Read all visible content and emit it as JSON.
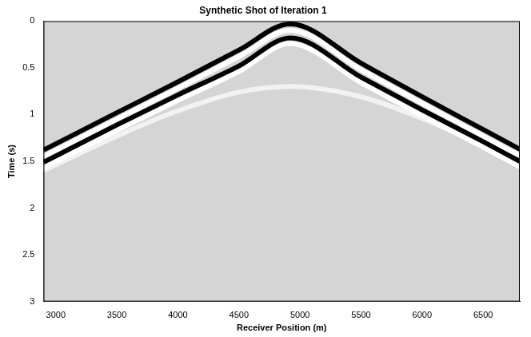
{
  "chart_data": {
    "type": "line",
    "title": "Synthetic Shot of Iteration 1",
    "x_label": "Receiver Position (m)",
    "y_label": "Time (s)",
    "x": [
      2900,
      3500,
      4000,
      4500,
      4920,
      5500,
      6000,
      6500,
      6800
    ],
    "series": [
      {
        "color": "#000000",
        "line_style": "solid",
        "values": [
          1.38,
          0.98,
          0.65,
          0.31,
          0.03,
          0.45,
          0.81,
          1.16,
          1.37
        ]
      },
      {
        "color": "#ffffff",
        "line_style": "solid",
        "values": [
          1.45,
          1.05,
          0.72,
          0.38,
          0.1,
          0.52,
          0.88,
          1.23,
          1.44
        ]
      },
      {
        "color": "#000000",
        "line_style": "solid",
        "values": [
          1.51,
          1.11,
          0.79,
          0.48,
          0.18,
          0.6,
          0.95,
          1.29,
          1.5
        ]
      },
      {
        "color": "#ffffff",
        "line_style": "solid",
        "values": [
          1.57,
          1.17,
          0.85,
          0.54,
          0.24,
          0.66,
          1.01,
          1.35,
          1.56
        ]
      },
      {
        "color": "#f2f2f2",
        "line_style": "solid",
        "values": [
          1.6,
          1.23,
          0.96,
          0.76,
          0.7,
          0.81,
          1.04,
          1.33,
          1.51
        ]
      }
    ],
    "xlim": [
      2900,
      6800
    ],
    "xticks": [
      3000,
      3500,
      4000,
      4500,
      5000,
      5500,
      6000,
      6500
    ],
    "ylim": [
      0,
      3
    ],
    "yticks": [
      0,
      0.5,
      1,
      1.5,
      2,
      2.5,
      3
    ],
    "grid": false,
    "marker": "none"
  }
}
